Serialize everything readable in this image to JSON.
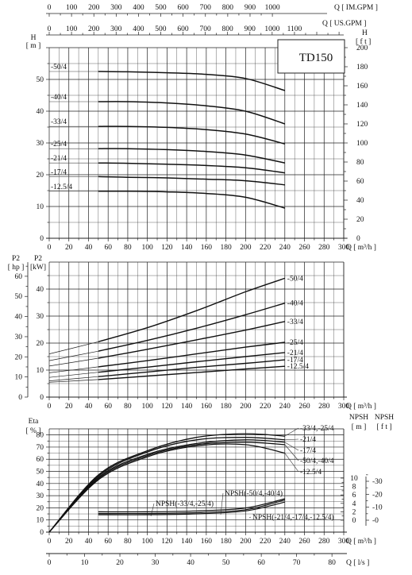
{
  "chart_data": [
    {
      "type": "line",
      "id": "head",
      "model_label": "TD150",
      "left_axis": {
        "label": "H",
        "unit": "[ m ]",
        "ylim": [
          0,
          60
        ],
        "ticks": [
          0,
          10,
          20,
          30,
          40,
          50
        ]
      },
      "right_axis": {
        "label": "H",
        "unit": "[ f t ]",
        "ylim": [
          0,
          200
        ],
        "ticks": [
          0,
          20,
          40,
          60,
          80,
          100,
          120,
          140,
          160,
          180,
          200
        ]
      },
      "top_axis_1": {
        "label": "Q",
        "unit": "[ IM.GPM ]",
        "ticks": [
          0,
          100,
          200,
          300,
          400,
          500,
          600,
          700,
          800,
          900,
          1000
        ]
      },
      "top_axis_2": {
        "label": "Q",
        "unit": "[ US.GPM ]",
        "ticks": [
          0,
          100,
          200,
          300,
          400,
          500,
          600,
          700,
          800,
          900,
          1000,
          1100
        ]
      },
      "bottom_axis": {
        "label": "Q",
        "unit": "[ m³/h ]",
        "xlim": [
          0,
          300
        ],
        "ticks": [
          0,
          20,
          40,
          60,
          80,
          100,
          120,
          140,
          160,
          180,
          200,
          220,
          240,
          260,
          280,
          300
        ]
      },
      "x": [
        50,
        80,
        120,
        160,
        200,
        240
      ],
      "series": [
        {
          "name": "50/4",
          "values": [
            52.5,
            52.4,
            52.1,
            51.6,
            50.3,
            46.5
          ]
        },
        {
          "name": "40/4",
          "values": [
            43.0,
            43.0,
            42.6,
            41.7,
            40.0,
            36.0
          ]
        },
        {
          "name": "33/4",
          "values": [
            35.2,
            35.2,
            34.9,
            34.2,
            32.8,
            29.7
          ]
        },
        {
          "name": "25/4",
          "values": [
            28.2,
            28.2,
            27.9,
            27.3,
            26.2,
            23.7
          ]
        },
        {
          "name": "21/4",
          "values": [
            23.7,
            23.6,
            23.3,
            22.9,
            22.2,
            20.6
          ]
        },
        {
          "name": "17/4",
          "values": [
            19.4,
            19.2,
            19.0,
            18.6,
            18.1,
            16.8
          ]
        },
        {
          "name": "12.5/4",
          "values": [
            14.8,
            14.8,
            14.6,
            14.1,
            12.9,
            9.5
          ]
        }
      ],
      "series_labels": [
        "-50/4",
        "-40/4",
        "-33/4",
        "-25/4",
        "-21/4",
        "-17/4",
        "-12.5/4"
      ]
    },
    {
      "type": "line",
      "id": "power",
      "left_axis_1": {
        "label": "P2",
        "unit": "[ hp ]",
        "ylim": [
          0,
          67
        ],
        "ticks": [
          0,
          10,
          20,
          30,
          40,
          50,
          60
        ]
      },
      "left_axis_2": {
        "label": "P2",
        "unit": "[kW]",
        "ylim": [
          0,
          50
        ],
        "ticks": [
          0,
          10,
          20,
          30,
          40
        ]
      },
      "bottom_axis": {
        "label": "Q",
        "unit": "[ m³/h ]",
        "xlim": [
          0,
          300
        ],
        "ticks": [
          0,
          20,
          40,
          60,
          80,
          100,
          120,
          140,
          160,
          180,
          200,
          220,
          240,
          260,
          280,
          300
        ]
      },
      "x": [
        0,
        50,
        100,
        150,
        200,
        240
      ],
      "series": [
        {
          "name": "50/4",
          "values": [
            16.0,
            20.5,
            25.7,
            32.0,
            39.0,
            44.0
          ]
        },
        {
          "name": "40/4",
          "values": [
            13.5,
            17.0,
            21.0,
            25.5,
            30.5,
            34.8
          ]
        },
        {
          "name": "33/4",
          "values": [
            11.5,
            14.4,
            17.7,
            21.2,
            24.8,
            28.0
          ]
        },
        {
          "name": "25/4",
          "values": [
            9.0,
            11.2,
            13.5,
            16.0,
            18.5,
            20.3
          ]
        },
        {
          "name": "21/4",
          "values": [
            7.3,
            9.2,
            11.1,
            13.1,
            15.0,
            16.5
          ]
        },
        {
          "name": "17/4",
          "values": [
            6.0,
            7.6,
            9.3,
            11.0,
            12.5,
            13.8
          ]
        },
        {
          "name": "12.5/4",
          "values": [
            5.5,
            6.5,
            7.8,
            9.1,
            10.4,
            11.4
          ]
        }
      ],
      "series_labels": [
        "-50/4",
        "-40/4",
        "-33/4",
        "-25/4",
        "-21/4",
        "-17/4",
        "-12.5/4"
      ]
    },
    {
      "type": "line",
      "id": "efficiency_npsh",
      "left_axis": {
        "label": "Eta",
        "unit": "[ % ]",
        "ylim": [
          0,
          85
        ],
        "ticks": [
          0,
          10,
          20,
          30,
          40,
          50,
          60,
          70,
          80
        ]
      },
      "npsh_m_axis": {
        "label": "NPSH",
        "unit": "[ m ]",
        "ylim": [
          -1,
          12
        ],
        "ticks": [
          0,
          2,
          4,
          6,
          8,
          10
        ]
      },
      "npsh_ft_axis": {
        "label": "NPSH",
        "unit": "[ f t ]",
        "ylim": [
          -3,
          39
        ],
        "ticks": [
          0,
          10,
          20,
          30
        ]
      },
      "bottom_axis_1": {
        "label": "Q",
        "unit": "[ m³/h ]",
        "xlim": [
          0,
          300
        ],
        "ticks": [
          0,
          20,
          40,
          60,
          80,
          100,
          120,
          140,
          160,
          180,
          200,
          220,
          240,
          260,
          280,
          300
        ]
      },
      "bottom_axis_2": {
        "label": "Q",
        "unit": "[ l/s ]",
        "ticks": [
          0,
          10,
          20,
          30,
          40,
          50,
          60,
          70,
          80
        ]
      },
      "efficiency_x": [
        0,
        50,
        100,
        150,
        200,
        240
      ],
      "efficiency_series": [
        {
          "name": "33/4,-25/4",
          "values": [
            0,
            47,
            67,
            78,
            81,
            79
          ]
        },
        {
          "name": "21/4",
          "values": [
            0,
            46,
            66,
            76,
            78,
            76
          ]
        },
        {
          "name": "17/4",
          "values": [
            0,
            45,
            64,
            73,
            76,
            74
          ]
        },
        {
          "name": "50/4,-40/4",
          "values": [
            0,
            44,
            63,
            72,
            74,
            72
          ]
        },
        {
          "name": "12.5/4",
          "values": [
            0,
            43,
            62,
            71,
            72,
            65
          ]
        }
      ],
      "efficiency_labels": [
        "-33/4,-25/4",
        "-21/4",
        "-17/4",
        "-50/4,-40/4",
        "-12.5/4"
      ],
      "npsh_x": [
        50,
        100,
        150,
        200,
        240
      ],
      "npsh_series": [
        {
          "name": "NPSH(-33/4,-25/4)",
          "values": [
            2.0,
            2.0,
            2.2,
            2.9,
            5.1
          ]
        },
        {
          "name": "NPSH(-50/4,-40/4)",
          "values": [
            1.6,
            1.6,
            1.8,
            2.5,
            4.8
          ]
        },
        {
          "name": "NPSH(-21/4,-17/4,-12.5/4)",
          "values": [
            1.3,
            1.3,
            1.5,
            2.2,
            4.3
          ]
        }
      ]
    }
  ]
}
